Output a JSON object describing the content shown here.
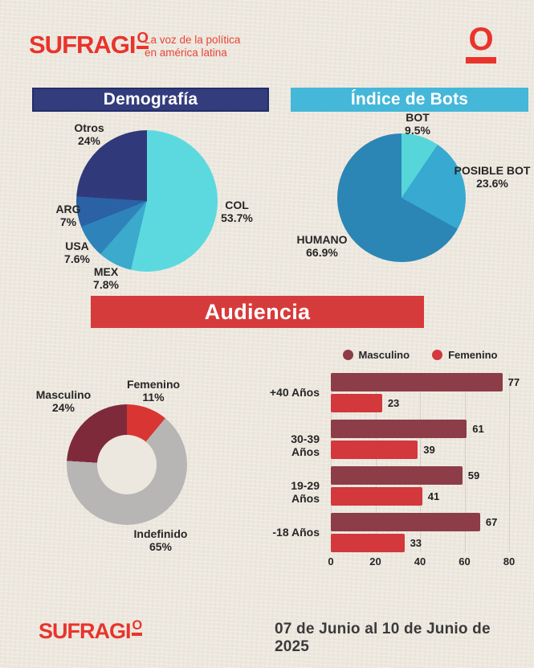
{
  "header": {
    "logo_main": "SUFRAGI",
    "logo_o": "O",
    "tagline_line1": "La voz de la política",
    "tagline_line2": "en américa latina",
    "o_icon": "O"
  },
  "sections": {
    "audiencia_title": "Audiencia"
  },
  "footer": {
    "logo_main": "SUFRAGI",
    "logo_o": "O",
    "date_range": "07 de Junio al 10 de Junio de 2025"
  },
  "colors": {
    "paper": "#EDE8DF",
    "navy_header": "#333D7D",
    "blue_header": "#45B7D8",
    "red_banner": "#D63B3B",
    "logo_red": "#E8342C",
    "grid": "#D6D1C7",
    "text_dark": "#262626"
  },
  "chart_data": [
    {
      "id": "demografia",
      "type": "pie",
      "title": "Demografía",
      "start_angle_deg": 0,
      "direction": "clockwise",
      "slices": [
        {
          "label": "COL",
          "value": 53.7,
          "display": "53.7%",
          "color": "#5CD9DE"
        },
        {
          "label": "MEX",
          "value": 7.8,
          "display": "7.8%",
          "color": "#3BAACD"
        },
        {
          "label": "USA",
          "value": 7.6,
          "display": "7.6%",
          "color": "#2E84BA"
        },
        {
          "label": "ARG",
          "value": 7.0,
          "display": "7%",
          "color": "#2A62A5"
        },
        {
          "label": "Otros",
          "value": 24.0,
          "display": "24%",
          "color": "#303A7A"
        }
      ]
    },
    {
      "id": "indice-de-bots",
      "type": "pie",
      "title": "Índice de Bots",
      "start_angle_deg": 0,
      "direction": "clockwise",
      "slices": [
        {
          "label": "BOT",
          "value": 9.5,
          "display": "9.5%",
          "color": "#57D6D9"
        },
        {
          "label": "POSIBLE BOT",
          "value": 23.6,
          "display": "23.6%",
          "color": "#38A9D1"
        },
        {
          "label": "HUMANO",
          "value": 66.9,
          "display": "66.9%",
          "color": "#2B86B5"
        }
      ]
    },
    {
      "id": "audiencia-genero",
      "type": "pie",
      "subtype": "donut",
      "start_angle_deg": 0,
      "direction": "clockwise",
      "slices": [
        {
          "label": "Femenino",
          "value": 11,
          "display": "11%",
          "color": "#D93532"
        },
        {
          "label": "Indefinido",
          "value": 65,
          "display": "65%",
          "color": "#B7B6B5"
        },
        {
          "label": "Masculino",
          "value": 24,
          "display": "24%",
          "color": "#7E2A3B"
        }
      ]
    },
    {
      "id": "audiencia-edad",
      "type": "bar",
      "orientation": "horizontal",
      "categories": [
        "+40 Años",
        "30-39 Años",
        "19-29 Años",
        "-18 Años"
      ],
      "series": [
        {
          "name": "Masculino",
          "color": "#8C3D48",
          "values": [
            77,
            61,
            59,
            67
          ]
        },
        {
          "name": "Femenino",
          "color": "#D2383C",
          "values": [
            23,
            39,
            41,
            33
          ]
        }
      ],
      "xlim": [
        0,
        80
      ],
      "xticks": [
        0,
        20,
        40,
        60,
        80
      ],
      "grid": true,
      "legend_position": "top"
    }
  ]
}
